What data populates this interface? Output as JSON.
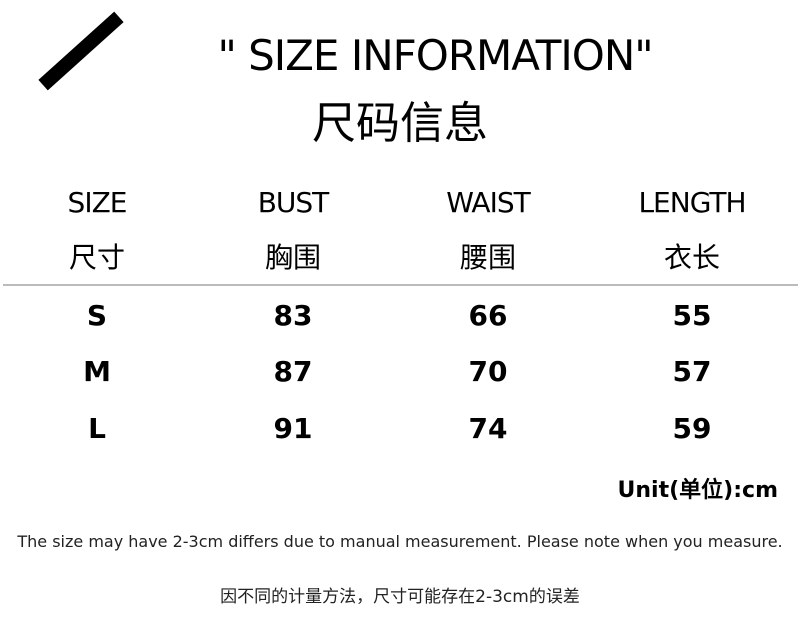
{
  "header": {
    "title": "\" SIZE INFORMATION\"",
    "subtitle": "尺码信息"
  },
  "table": {
    "columns": [
      {
        "en": "SIZE",
        "zh": "尺寸"
      },
      {
        "en": "BUST",
        "zh": "胸围"
      },
      {
        "en": "WAIST",
        "zh": "腰围"
      },
      {
        "en": "LENGTH",
        "zh": "衣长"
      }
    ],
    "rows": [
      [
        "S",
        "83",
        "66",
        "55"
      ],
      [
        "M",
        "87",
        "70",
        "57"
      ],
      [
        "L",
        "91",
        "74",
        "59"
      ]
    ]
  },
  "unit": "Unit(单位):cm",
  "note_en": "The size may have 2-3cm differs due to manual measurement. Please note when you measure.",
  "note_zh": "因不同的计量方法，尺寸可能存在2-3cm的误差"
}
